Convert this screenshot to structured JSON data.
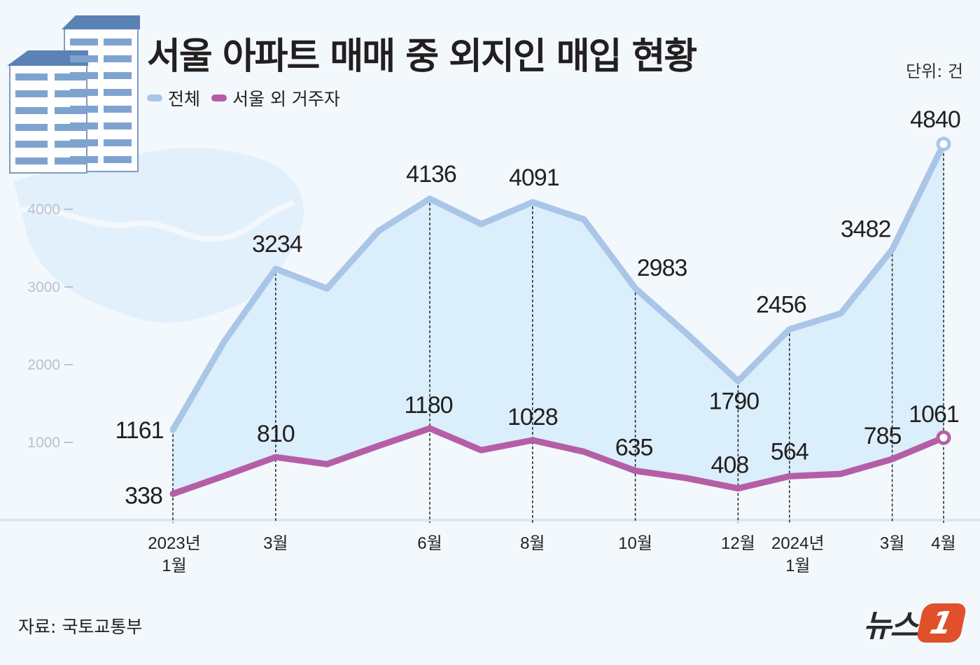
{
  "title": "서울 아파트 매매 중 외지인 매입 현황",
  "unit": "단위: 건",
  "source": "자료: 국토교통부",
  "logo": {
    "text": "뉴스",
    "mark": "1"
  },
  "colors": {
    "total": "#a9c6e8",
    "total_fill": "#dbeefb",
    "outside": "#b55ea6",
    "background": "#f3f8fd"
  },
  "chart_data": {
    "type": "line",
    "title": "서울 아파트 매매 중 외지인 매입 현황",
    "unit": "단위: 건",
    "x": [
      "2023-01",
      "2023-02",
      "2023-03",
      "2023-04",
      "2023-05",
      "2023-06",
      "2023-07",
      "2023-08",
      "2023-09",
      "2023-10",
      "2023-11",
      "2023-12",
      "2024-01",
      "2024-02",
      "2024-03",
      "2024-04"
    ],
    "x_tick_labels": [
      {
        "index": 0,
        "lines": [
          "2023년",
          "1월"
        ]
      },
      {
        "index": 2,
        "lines": [
          "3월"
        ]
      },
      {
        "index": 5,
        "lines": [
          "6월"
        ]
      },
      {
        "index": 7,
        "lines": [
          "8월"
        ]
      },
      {
        "index": 9,
        "lines": [
          "10월"
        ]
      },
      {
        "index": 11,
        "lines": [
          "12월"
        ]
      },
      {
        "index": 12,
        "lines": [
          "2024년",
          "1월"
        ]
      },
      {
        "index": 14,
        "lines": [
          "3월"
        ]
      },
      {
        "index": 15,
        "lines": [
          "4월"
        ]
      }
    ],
    "y_ticks": [
      "1000",
      "2000",
      "3000",
      "4000"
    ],
    "ylim": [
      0,
      5000
    ],
    "grid": false,
    "legend": "top-left",
    "series": [
      {
        "name": "전체",
        "values": [
          1161,
          2300,
          3234,
          2980,
          3720,
          4136,
          3810,
          4091,
          3870,
          2983,
          2400,
          1790,
          2456,
          2660,
          3482,
          4840
        ],
        "labeled": [
          0,
          2,
          5,
          7,
          9,
          11,
          12,
          14,
          15
        ]
      },
      {
        "name": "서울 외 거주자",
        "values": [
          338,
          570,
          810,
          720,
          955,
          1180,
          900,
          1028,
          880,
          635,
          540,
          408,
          564,
          595,
          785,
          1061
        ],
        "labeled": [
          0,
          2,
          5,
          7,
          9,
          11,
          12,
          14,
          15
        ]
      }
    ]
  }
}
